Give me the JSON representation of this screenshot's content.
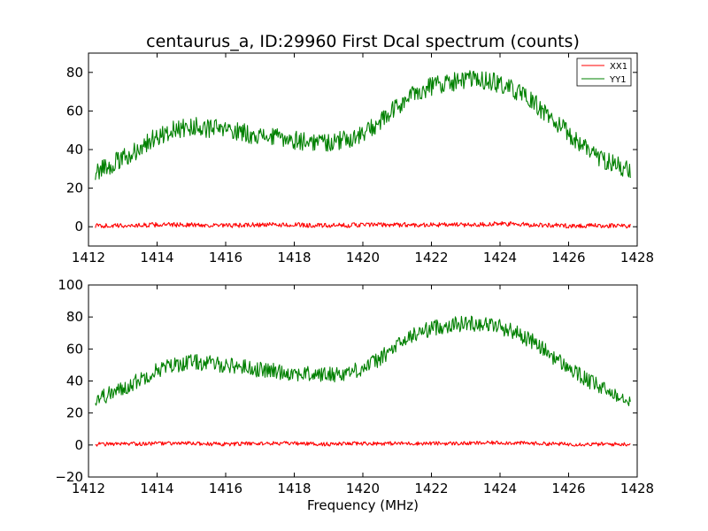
{
  "chart_data": [
    {
      "type": "line",
      "title": "centaurus_a, ID:29960 First Dcal spectrum (counts)",
      "xlabel": "",
      "ylabel": "",
      "xlim": [
        1412,
        1428
      ],
      "ylim": [
        -10,
        90
      ],
      "xticks": [
        "1412",
        "1414",
        "1416",
        "1418",
        "1420",
        "1422",
        "1424",
        "1426",
        "1428"
      ],
      "yticks": [
        "0",
        "20",
        "40",
        "60",
        "80"
      ],
      "ytick_values": [
        0,
        20,
        40,
        60,
        80
      ],
      "grid": false,
      "legend": "top-right",
      "series": [
        {
          "name": "XX1",
          "color": "#ff0000",
          "x": [
            1412.2,
            1413.0,
            1414.0,
            1415.0,
            1416.0,
            1417.0,
            1418.0,
            1419.0,
            1420.0,
            1421.0,
            1422.0,
            1423.0,
            1424.0,
            1425.0,
            1426.0,
            1427.0,
            1427.8
          ],
          "y": [
            0.5,
            0.5,
            1.0,
            1.0,
            0.5,
            1.0,
            1.0,
            0.5,
            1.0,
            1.0,
            1.0,
            1.0,
            1.5,
            1.0,
            0.5,
            0.5,
            0.5
          ],
          "noise": 1.2
        },
        {
          "name": "YY1",
          "color": "#008000",
          "x": [
            1412.2,
            1412.5,
            1413.0,
            1413.5,
            1414.0,
            1414.5,
            1415.0,
            1415.5,
            1416.0,
            1416.5,
            1417.0,
            1417.5,
            1418.0,
            1418.5,
            1419.0,
            1419.5,
            1420.0,
            1420.5,
            1421.0,
            1421.5,
            1422.0,
            1422.5,
            1423.0,
            1423.5,
            1424.0,
            1424.5,
            1425.0,
            1425.5,
            1426.0,
            1426.5,
            1427.0,
            1427.5,
            1427.8
          ],
          "y": [
            29,
            31,
            35,
            41,
            47,
            50,
            52,
            51,
            50,
            49,
            47,
            46,
            45,
            44,
            44,
            45,
            48,
            54,
            62,
            69,
            73,
            75,
            76,
            76,
            74,
            70,
            64,
            56,
            48,
            41,
            35,
            31,
            29
          ],
          "noise": 5
        }
      ]
    },
    {
      "type": "line",
      "title": "",
      "xlabel": "Frequency (MHz)",
      "ylabel": "",
      "xlim": [
        1412,
        1428
      ],
      "ylim": [
        -20,
        100
      ],
      "xticks": [
        "1412",
        "1414",
        "1416",
        "1418",
        "1420",
        "1422",
        "1424",
        "1426",
        "1428"
      ],
      "yticks": [
        "−20",
        "0",
        "20",
        "40",
        "60",
        "80",
        "100"
      ],
      "ytick_values": [
        -20,
        0,
        20,
        40,
        60,
        80,
        100
      ],
      "grid": false,
      "series": [
        {
          "name": "",
          "color": "#ff0000",
          "x": [
            1412.2,
            1413.0,
            1414.0,
            1415.0,
            1416.0,
            1417.0,
            1418.0,
            1419.0,
            1420.0,
            1421.0,
            1422.0,
            1423.0,
            1424.0,
            1425.0,
            1426.0,
            1427.0,
            1427.8
          ],
          "y": [
            0.5,
            0.5,
            1.0,
            1.0,
            0.5,
            1.0,
            1.0,
            0.5,
            1.0,
            1.0,
            1.0,
            1.0,
            1.5,
            1.0,
            0.5,
            0.5,
            0.5
          ],
          "noise": 1.2
        },
        {
          "name": "",
          "color": "#008000",
          "x": [
            1412.2,
            1412.5,
            1413.0,
            1413.5,
            1414.0,
            1414.5,
            1415.0,
            1415.5,
            1416.0,
            1416.5,
            1417.0,
            1417.5,
            1418.0,
            1418.5,
            1419.0,
            1419.5,
            1420.0,
            1420.5,
            1421.0,
            1421.5,
            1422.0,
            1422.5,
            1423.0,
            1423.5,
            1424.0,
            1424.5,
            1425.0,
            1425.5,
            1426.0,
            1426.5,
            1427.0,
            1427.5,
            1427.8
          ],
          "y": [
            29,
            31,
            35,
            41,
            47,
            50,
            52,
            51,
            50,
            49,
            47,
            46,
            45,
            44,
            44,
            45,
            48,
            54,
            62,
            69,
            73,
            75,
            76,
            76,
            74,
            70,
            64,
            56,
            48,
            41,
            35,
            31,
            29
          ],
          "noise": 5
        }
      ]
    }
  ]
}
